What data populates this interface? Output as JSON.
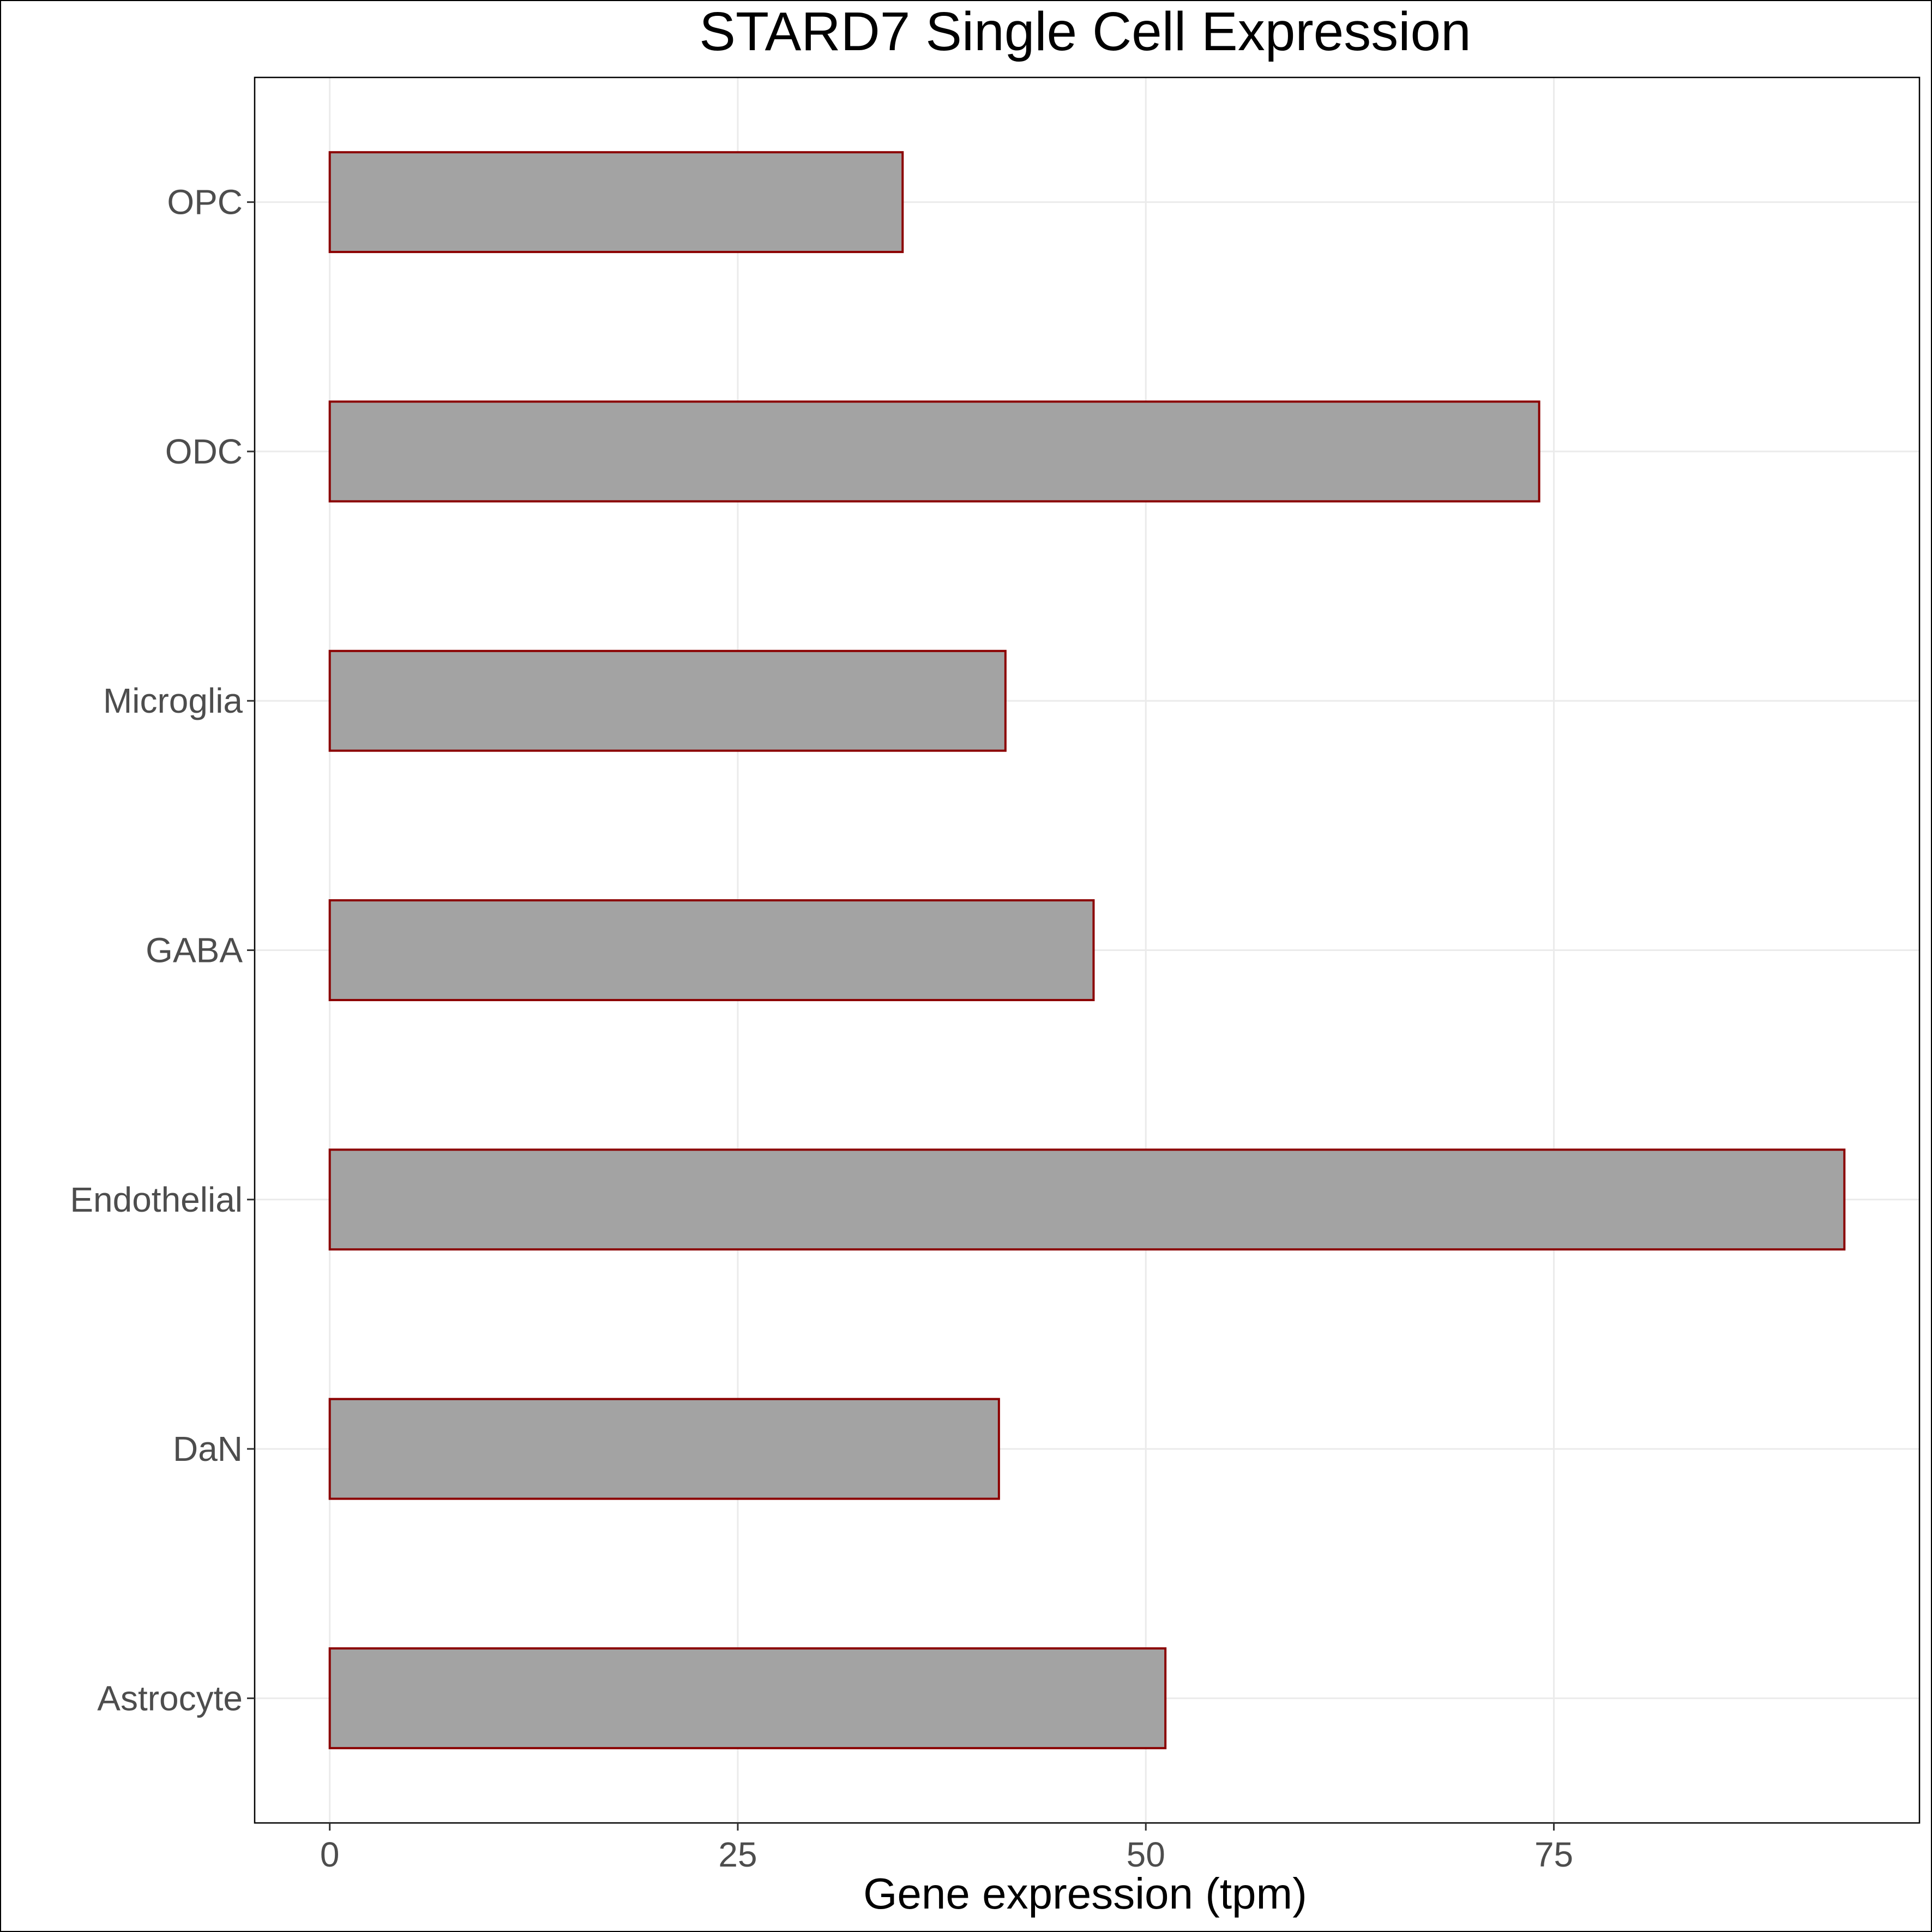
{
  "chart_data": {
    "type": "bar",
    "orientation": "horizontal",
    "title": "STARD7 Single Cell Expression",
    "xlabel": "Gene expression (tpm)",
    "ylabel": "",
    "categories": [
      "Astrocyte",
      "DaN",
      "Endothelial",
      "GABA",
      "Microglia",
      "ODC",
      "OPC"
    ],
    "values": [
      51.2,
      41.0,
      92.8,
      46.8,
      41.4,
      74.1,
      35.1
    ],
    "xlim": [
      -4.6,
      97.4
    ],
    "x_ticks": [
      0,
      25,
      50,
      75
    ],
    "grid": true,
    "legend": "none",
    "colors": {
      "bar_fill": "#a3a3a3",
      "bar_stroke": "#8b0000",
      "grid": "#ebebeb",
      "panel_border": "#000000",
      "tick_text": "#4d4d4d"
    }
  }
}
